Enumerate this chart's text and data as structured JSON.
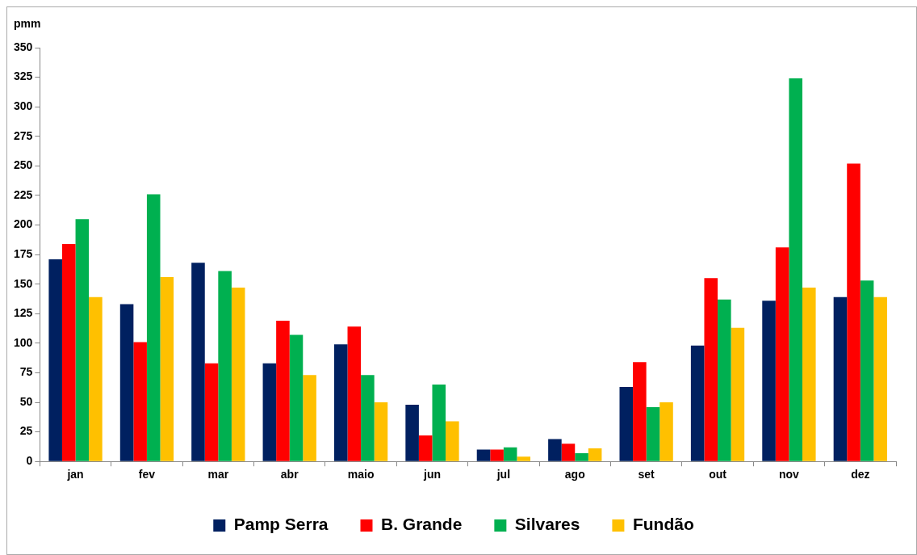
{
  "chart_data": {
    "type": "bar",
    "ylabel": "pmm",
    "categories": [
      "jan",
      "fev",
      "mar",
      "abr",
      "maio",
      "jun",
      "jul",
      "ago",
      "set",
      "out",
      "nov",
      "dez"
    ],
    "series": [
      {
        "name": "Pamp Serra",
        "color": "#002060",
        "values": [
          171,
          133,
          168,
          83,
          99,
          48,
          10,
          19,
          63,
          98,
          136,
          139
        ]
      },
      {
        "name": "B. Grande",
        "color": "#ff0000",
        "values": [
          184,
          101,
          83,
          119,
          114,
          22,
          10,
          15,
          84,
          155,
          181,
          252
        ]
      },
      {
        "name": "Silvares",
        "color": "#00b050",
        "values": [
          205,
          226,
          161,
          107,
          73,
          65,
          12,
          7,
          46,
          137,
          324,
          153
        ]
      },
      {
        "name": "Fundão",
        "color": "#ffc000",
        "values": [
          139,
          156,
          147,
          73,
          50,
          34,
          4,
          11,
          50,
          113,
          147,
          139
        ]
      }
    ],
    "ylim": [
      0,
      350
    ],
    "yticks": [
      0,
      25,
      50,
      75,
      100,
      125,
      150,
      175,
      200,
      225,
      250,
      275,
      300,
      325,
      350
    ],
    "grid": false,
    "legend": "bottom"
  }
}
